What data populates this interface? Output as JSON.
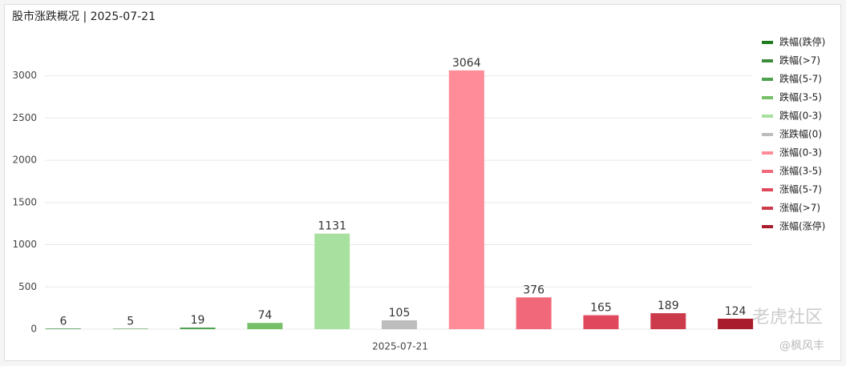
{
  "chart_data": {
    "type": "bar",
    "title": "股市涨跌概况 | 2025-07-21",
    "categories": [
      "2025-07-21"
    ],
    "series": [
      {
        "name": "跌幅(跌停)",
        "color": "#1e7b1e",
        "values": [
          6
        ]
      },
      {
        "name": "跌幅(>7)",
        "color": "#3d8b3d",
        "values": [
          5
        ]
      },
      {
        "name": "跌幅(5-7)",
        "color": "#4ea24e",
        "values": [
          19
        ]
      },
      {
        "name": "跌幅(3-5)",
        "color": "#76c06a",
        "values": [
          74
        ]
      },
      {
        "name": "跌幅(0-3)",
        "color": "#a8e09f",
        "values": [
          1131
        ]
      },
      {
        "name": "涨跌幅(0)",
        "color": "#bdbdbd",
        "values": [
          105
        ]
      },
      {
        "name": "涨幅(0-3)",
        "color": "#ff8c99",
        "values": [
          3064
        ]
      },
      {
        "name": "涨幅(3-5)",
        "color": "#f0687a",
        "values": [
          376
        ]
      },
      {
        "name": "涨幅(5-7)",
        "color": "#e0495d",
        "values": [
          165
        ]
      },
      {
        "name": "涨幅(>7)",
        "color": "#cc3b4c",
        "values": [
          189
        ]
      },
      {
        "name": "涨幅(涨停)",
        "color": "#a81c2c",
        "values": [
          124
        ]
      }
    ],
    "ylim": [
      0,
      3300
    ],
    "yticks": [
      0,
      500,
      1000,
      1500,
      2000,
      2500,
      3000
    ],
    "grid": true,
    "legend": "right",
    "watermark": [
      "老虎社区",
      "@枫风丰"
    ]
  }
}
